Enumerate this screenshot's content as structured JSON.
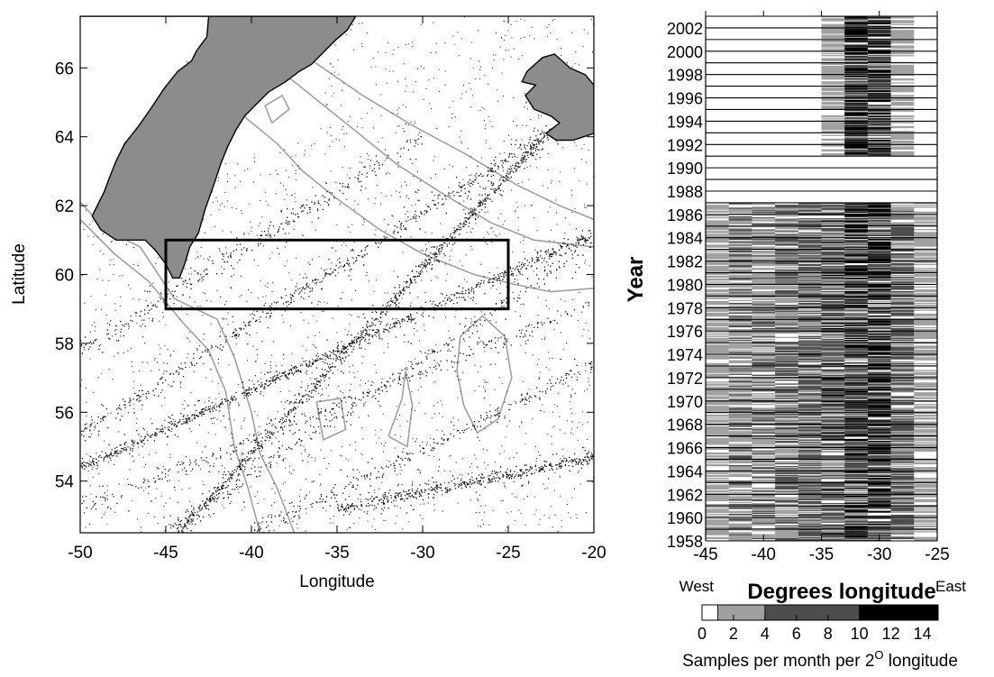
{
  "chart_data": [
    {
      "type": "scatter",
      "panel": "map",
      "xlabel": "Longitude",
      "ylabel": "Latitude",
      "xlim": [
        -50,
        -20
      ],
      "ylim": [
        52.5,
        67.5
      ],
      "xticks": [
        -50,
        -45,
        -40,
        -35,
        -30,
        -25,
        -20
      ],
      "yticks": [
        54,
        56,
        58,
        60,
        62,
        64,
        66
      ],
      "xtick_labels": [
        "-50",
        "-45",
        "-40",
        "-35",
        "-30",
        "-25",
        "-20"
      ],
      "ytick_labels": [
        "54",
        "56",
        "58",
        "60",
        "62",
        "64",
        "66"
      ],
      "study_box": {
        "lon": [
          -45,
          -25
        ],
        "lat": [
          59,
          61
        ]
      },
      "greenland_outline": [
        [
          -50,
          67.5
        ],
        [
          -42.5,
          67.5
        ],
        [
          -42.6,
          66.9
        ],
        [
          -43.2,
          66.5
        ],
        [
          -43.5,
          66.2
        ],
        [
          -44.3,
          65.9
        ],
        [
          -45.1,
          65.4
        ],
        [
          -45.9,
          64.8
        ],
        [
          -46.6,
          64.3
        ],
        [
          -47.4,
          63.8
        ],
        [
          -47.9,
          63.3
        ],
        [
          -48.3,
          62.8
        ],
        [
          -48.6,
          62.4
        ],
        [
          -49.0,
          62.0
        ],
        [
          -49.3,
          61.7
        ],
        [
          -48.8,
          61.3
        ],
        [
          -47.9,
          61.0
        ],
        [
          -47.0,
          61.0
        ],
        [
          -46.2,
          61.0
        ],
        [
          -45.6,
          60.7
        ],
        [
          -45.0,
          60.3
        ],
        [
          -44.6,
          59.9
        ],
        [
          -44.2,
          59.9
        ],
        [
          -43.9,
          60.3
        ],
        [
          -43.6,
          60.8
        ],
        [
          -43.1,
          61.2
        ],
        [
          -42.7,
          61.9
        ],
        [
          -42.2,
          62.6
        ],
        [
          -41.8,
          63.2
        ],
        [
          -41.4,
          63.7
        ],
        [
          -40.9,
          64.2
        ],
        [
          -40.4,
          64.6
        ],
        [
          -39.8,
          64.9
        ],
        [
          -39.0,
          65.3
        ],
        [
          -38.0,
          65.6
        ],
        [
          -37.2,
          65.9
        ],
        [
          -36.5,
          66.1
        ],
        [
          -35.9,
          66.4
        ],
        [
          -35.1,
          66.8
        ],
        [
          -34.4,
          67.1
        ],
        [
          -33.9,
          67.5
        ],
        [
          -50,
          67.5
        ]
      ],
      "greenland_outline_note": "",
      "iceland_outline": [
        [
          -23.9,
          65.9
        ],
        [
          -23.0,
          66.3
        ],
        [
          -22.3,
          66.4
        ],
        [
          -21.4,
          66.0
        ],
        [
          -20.5,
          65.8
        ],
        [
          -20,
          65.5
        ],
        [
          -20,
          64.1
        ],
        [
          -21.2,
          63.9
        ],
        [
          -22.2,
          63.9
        ],
        [
          -22.8,
          64.1
        ],
        [
          -22.0,
          64.4
        ],
        [
          -22.5,
          64.6
        ],
        [
          -23.5,
          64.8
        ],
        [
          -24.0,
          65.2
        ],
        [
          -23.4,
          65.5
        ],
        [
          -24.2,
          65.6
        ]
      ],
      "contours": [
        [
          [
            -50,
            62.1
          ],
          [
            -48.5,
            61.3
          ],
          [
            -46.5,
            60.8
          ],
          [
            -44.5,
            59.3
          ],
          [
            -42,
            58.7
          ],
          [
            -41,
            57.6
          ],
          [
            -40,
            56
          ],
          [
            -39.5,
            54.8
          ],
          [
            -38.5,
            53.8
          ],
          [
            -37.5,
            52.5
          ]
        ],
        [
          [
            -50,
            61.6
          ],
          [
            -48,
            60.6
          ],
          [
            -46,
            59.8
          ],
          [
            -44,
            58.6
          ],
          [
            -42.5,
            57.8
          ],
          [
            -41.5,
            56.6
          ],
          [
            -41,
            55
          ],
          [
            -40.2,
            53.8
          ],
          [
            -39.5,
            52.5
          ]
        ],
        [
          [
            -43.8,
            66.2
          ],
          [
            -41.8,
            65.2
          ],
          [
            -40.2,
            64.5
          ],
          [
            -38.5,
            63.8
          ],
          [
            -37,
            63
          ],
          [
            -35,
            62.2
          ],
          [
            -32.5,
            61.3
          ],
          [
            -30,
            60.6
          ],
          [
            -27,
            60
          ],
          [
            -24.5,
            59.7
          ],
          [
            -22.5,
            59.5
          ],
          [
            -20,
            59.6
          ]
        ],
        [
          [
            -42.8,
            66.8
          ],
          [
            -39.5,
            66.3
          ],
          [
            -37.5,
            65.6
          ],
          [
            -35.5,
            64.8
          ],
          [
            -33.5,
            64
          ],
          [
            -31.5,
            63.2
          ],
          [
            -29,
            62.4
          ],
          [
            -26,
            61.5
          ],
          [
            -23.5,
            61
          ],
          [
            -20,
            60.8
          ]
        ],
        [
          [
            -40.2,
            66.6
          ],
          [
            -37,
            66.4
          ],
          [
            -33.5,
            65.2
          ],
          [
            -30.5,
            64.3
          ],
          [
            -27.5,
            63.5
          ],
          [
            -24.5,
            62.6
          ],
          [
            -22,
            62
          ],
          [
            -20,
            61.6
          ]
        ],
        [
          [
            -36.2,
            56.3
          ],
          [
            -34.8,
            56.4
          ],
          [
            -34.5,
            55.5
          ],
          [
            -35.8,
            55.2
          ],
          [
            -36.2,
            56.3
          ]
        ],
        [
          [
            -32,
            55.3
          ],
          [
            -31.2,
            56.4
          ],
          [
            -31,
            57.2
          ],
          [
            -30.6,
            56.2
          ],
          [
            -30.9,
            55
          ],
          [
            -32,
            55.3
          ]
        ],
        [
          [
            -27.8,
            58.2
          ],
          [
            -26.5,
            58.8
          ],
          [
            -25.2,
            58.2
          ],
          [
            -24.8,
            57
          ],
          [
            -25.6,
            55.8
          ],
          [
            -26.8,
            55.4
          ],
          [
            -27.6,
            56.2
          ],
          [
            -28,
            57.2
          ],
          [
            -27.8,
            58.2
          ]
        ],
        [
          [
            -38.8,
            64.4
          ],
          [
            -37.8,
            64.8
          ],
          [
            -38.2,
            65.2
          ],
          [
            -39.2,
            64.9
          ],
          [
            -38.8,
            64.4
          ]
        ]
      ],
      "ship_tracks": [
        {
          "from": [
            -44.3,
            52.5
          ],
          "to": [
            -22.8,
            64.1
          ],
          "weight": "heavy"
        },
        {
          "from": [
            -50,
            54.4
          ],
          "to": [
            -20,
            61.2
          ],
          "weight": "heavy"
        },
        {
          "from": [
            -50,
            55.4
          ],
          "to": [
            -22.5,
            64.2
          ],
          "weight": "medium"
        },
        {
          "from": [
            -50,
            53.2
          ],
          "to": [
            -20,
            59.2
          ],
          "weight": "light"
        },
        {
          "from": [
            -45,
            52.5
          ],
          "to": [
            -20,
            60.9
          ],
          "weight": "light"
        },
        {
          "from": [
            -35,
            53.2
          ],
          "to": [
            -20,
            54.7
          ],
          "weight": "medium"
        },
        {
          "from": [
            -50,
            57.8
          ],
          "to": [
            -30,
            64
          ],
          "weight": "light"
        },
        {
          "from": [
            -40,
            52.5
          ],
          "to": [
            -20,
            57.4
          ],
          "weight": "light"
        }
      ]
    },
    {
      "type": "heatmap",
      "panel": "time-longitude",
      "xlabel": "Degrees longitude",
      "ylabel": "Year",
      "xlabel_left": "West",
      "xlabel_right": "East",
      "xlim": [
        -45,
        -25
      ],
      "ylim": [
        1958,
        2003
      ],
      "xticks": [
        -45,
        -40,
        -35,
        -30,
        -25
      ],
      "xtick_labels": [
        "-45",
        "-40",
        "-35",
        "-30",
        "-25"
      ],
      "yticks": [
        1958,
        1960,
        1962,
        1964,
        1966,
        1968,
        1970,
        1972,
        1974,
        1976,
        1978,
        1980,
        1982,
        1984,
        1986,
        1988,
        1990,
        1992,
        1994,
        1996,
        1998,
        2000,
        2002
      ],
      "ytick_labels": [
        "1958",
        "1960",
        "1962",
        "1964",
        "1966",
        "1968",
        "1970",
        "1972",
        "1974",
        "1976",
        "1978",
        "1980",
        "1982",
        "1984",
        "1986",
        "1988",
        "1990",
        "1992",
        "1994",
        "1996",
        "1998",
        "2000",
        "2002"
      ],
      "bin_width_deg": 2,
      "longitude_bins": [
        -45,
        -43,
        -41,
        -39,
        -37,
        -35,
        -33,
        -31,
        -29,
        -27
      ],
      "year_profiles": [
        {
          "years": [
            1958,
            1987
          ],
          "levels": [
            2,
            3,
            3,
            4,
            5,
            6,
            8,
            9,
            5,
            2
          ]
        },
        {
          "years": [
            1987,
            1991
          ],
          "levels": [
            0,
            0,
            0,
            0,
            0,
            0,
            0,
            0,
            0,
            0
          ]
        },
        {
          "years": [
            1991,
            2003
          ],
          "levels": [
            0,
            0,
            0,
            0,
            0,
            2,
            9,
            9,
            2,
            0
          ]
        }
      ],
      "colorbar": {
        "label": "Samples per month per 2",
        "superscript": "O",
        "label_end": " longitude",
        "ticks": [
          "0",
          "2",
          "4",
          "6",
          "8",
          "10",
          "12",
          "14"
        ],
        "range": [
          0,
          15
        ],
        "bins": [
          {
            "from": 0,
            "to": 1,
            "color": "#ffffff"
          },
          {
            "from": 1,
            "to": 4,
            "color": "#a0a0a0"
          },
          {
            "from": 4,
            "to": 10,
            "color": "#4d4d4d"
          },
          {
            "from": 10,
            "to": 15,
            "color": "#000000"
          }
        ]
      }
    }
  ],
  "colors": {
    "land": "#8c8c8c",
    "contour": "#a0a0a0",
    "ink": "#000000"
  }
}
